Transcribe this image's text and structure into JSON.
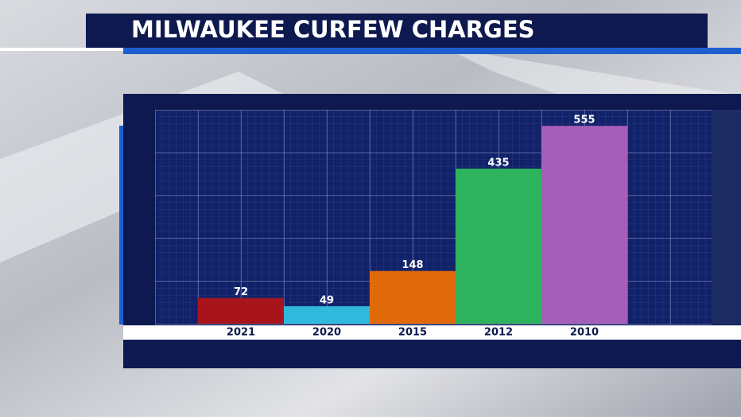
{
  "chart_data": {
    "type": "bar",
    "title": "MILWAUKEE CURFEW CHARGES",
    "categories": [
      "2021",
      "2020",
      "2015",
      "2012",
      "2010"
    ],
    "values": [
      72,
      49,
      148,
      435,
      555
    ],
    "colors": [
      "#a8141c",
      "#30b9dc",
      "#e06a0a",
      "#2db25e",
      "#a65fb9"
    ],
    "ylim": [
      0,
      600
    ]
  }
}
